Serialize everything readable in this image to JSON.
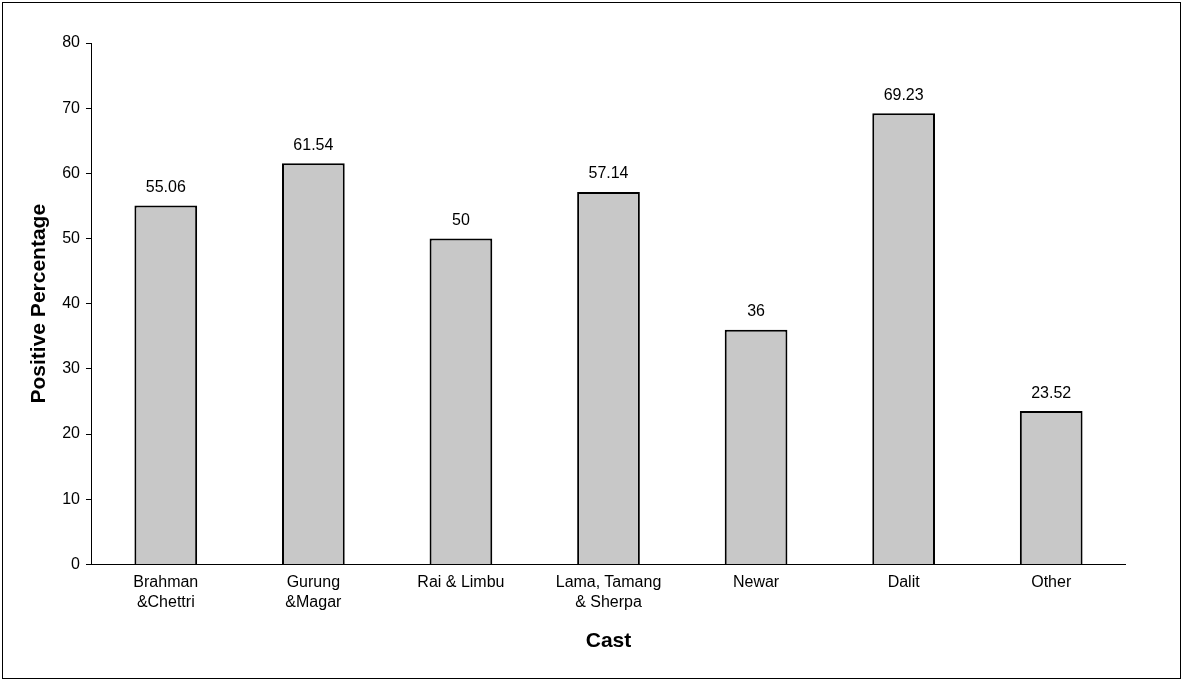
{
  "chart_data": {
    "type": "bar",
    "xlabel": "Cast",
    "ylabel": "Positive Percentage",
    "categories": [
      "Brahman\n&Chettri",
      "Gurung\n&Magar",
      "Rai & Limbu",
      "Lama, Tamang\n& Sherpa",
      "Newar",
      "Dalit",
      "Other"
    ],
    "values": [
      55.06,
      61.54,
      50,
      57.14,
      36,
      69.23,
      23.52
    ],
    "color": "#c8c8c8",
    "ylim": [
      0,
      80
    ],
    "yticks": [
      0,
      10,
      20,
      30,
      40,
      50,
      60,
      70,
      80
    ],
    "data_labels": true,
    "grid": false,
    "legend": false
  }
}
